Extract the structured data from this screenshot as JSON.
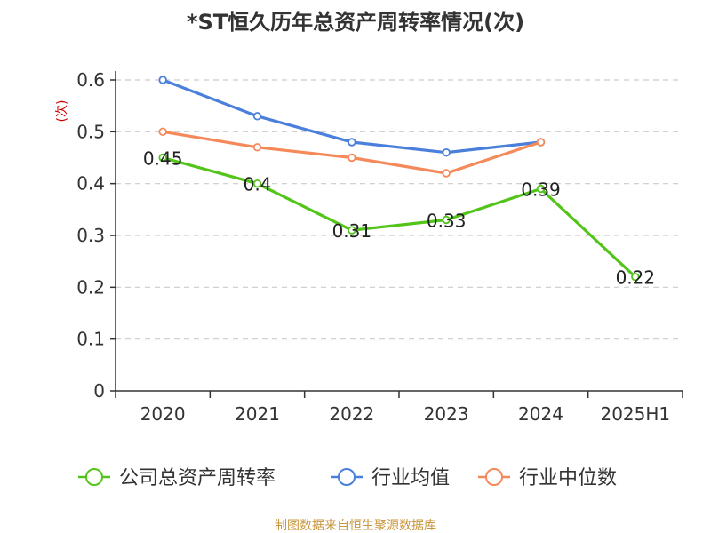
{
  "chart_data": {
    "type": "line",
    "title": "*ST恒久历年总资产周转率情况(次)",
    "ylabel": "(次)",
    "categories": [
      "2020",
      "2021",
      "2022",
      "2023",
      "2024",
      "2025H1"
    ],
    "ylim": [
      0,
      0.6
    ],
    "yticks": [
      "0",
      "0.1",
      "0.2",
      "0.3",
      "0.4",
      "0.5",
      "0.6"
    ],
    "grid": true,
    "legend_position": "bottom",
    "series": [
      {
        "name": "公司总资产周转率",
        "color": "#52c41a",
        "values": [
          0.45,
          0.4,
          0.31,
          0.33,
          0.39,
          0.22
        ],
        "labels": [
          "0.45",
          "0.4",
          "0.31",
          "0.33",
          "0.39",
          "0.22"
        ]
      },
      {
        "name": "行业均值",
        "color": "#4a7fdb",
        "values": [
          0.6,
          0.53,
          0.48,
          0.46,
          0.48,
          null
        ]
      },
      {
        "name": "行业中位数",
        "color": "#f5895a",
        "values": [
          0.5,
          0.47,
          0.45,
          0.42,
          0.48,
          null
        ]
      }
    ],
    "source": "制图数据来自恒生聚源数据库"
  },
  "colors": {
    "ylabel": "#cc0000",
    "source": "#c8963c",
    "grid": "#cccccc",
    "axis": "#333333"
  }
}
